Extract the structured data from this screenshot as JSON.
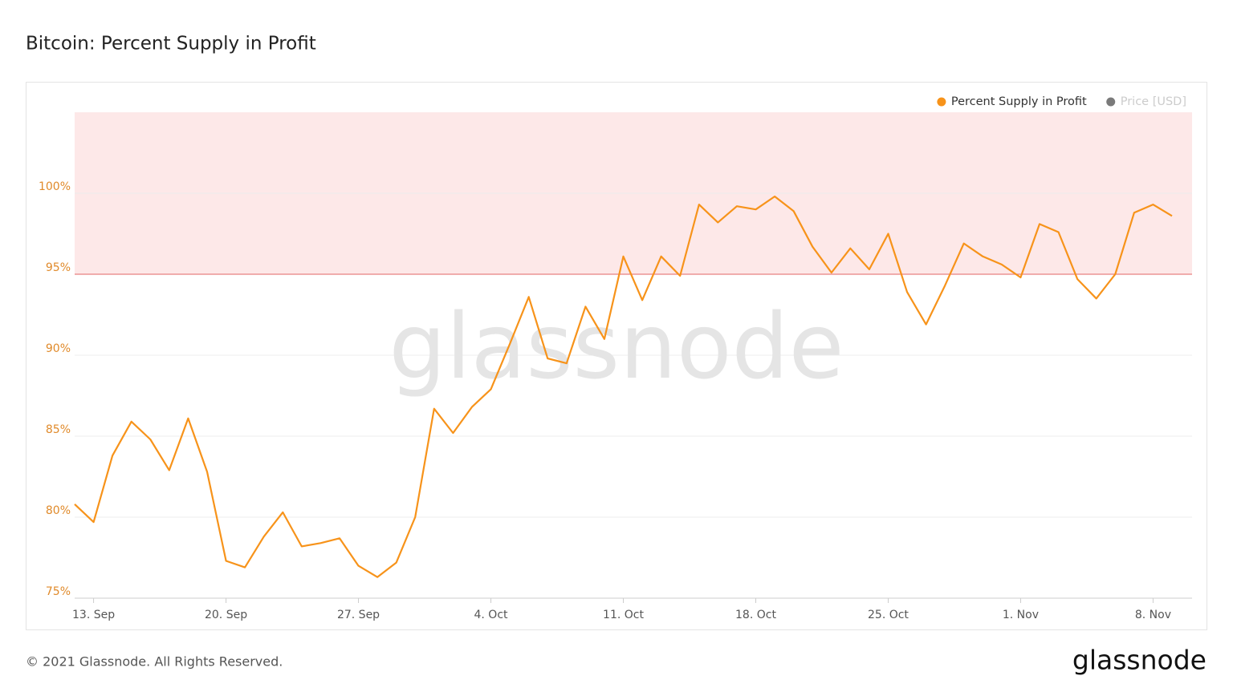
{
  "chart_data": {
    "type": "line",
    "title": "Bitcoin: Percent Supply in Profit",
    "categories": [
      null,
      "13. Sep",
      null,
      null,
      null,
      null,
      null,
      null,
      "20. Sep",
      null,
      null,
      null,
      null,
      null,
      null,
      "27. Sep",
      null,
      null,
      null,
      null,
      null,
      null,
      "4. Oct",
      null,
      null,
      null,
      null,
      null,
      null,
      "11. Oct",
      null,
      null,
      null,
      null,
      null,
      null,
      "18. Oct",
      null,
      null,
      null,
      null,
      null,
      null,
      "25. Oct",
      null,
      null,
      null,
      null,
      null,
      null,
      "1. Nov",
      null,
      null,
      null,
      null,
      null,
      null,
      "8. Nov",
      null
    ],
    "series": [
      {
        "name": "Percent Supply in Profit",
        "color": "#f7931a",
        "values": [
          80.8,
          79.7,
          83.8,
          85.9,
          84.8,
          82.9,
          86.1,
          82.8,
          77.3,
          76.9,
          78.8,
          80.3,
          78.2,
          78.4,
          78.7,
          77.0,
          76.3,
          77.2,
          80.0,
          86.7,
          85.2,
          86.8,
          87.9,
          90.7,
          93.6,
          89.8,
          89.5,
          93.0,
          91.0,
          96.1,
          93.4,
          96.1,
          94.9,
          99.3,
          98.2,
          99.2,
          99.0,
          99.8,
          98.9,
          96.7,
          95.1,
          96.6,
          95.3,
          97.5,
          93.9,
          91.9,
          94.3,
          96.9,
          96.1,
          95.6,
          94.8,
          98.1,
          97.6,
          94.7,
          93.5,
          95.0,
          98.8,
          99.3,
          98.6
        ]
      }
    ],
    "inactive_series": [
      {
        "name": "Price [USD]",
        "color": "#7a7a7a"
      }
    ],
    "ylim": [
      75,
      105
    ],
    "yticks": [
      {
        "value": 75,
        "label": "75%"
      },
      {
        "value": 80,
        "label": "80%"
      },
      {
        "value": 85,
        "label": "85%"
      },
      {
        "value": 90,
        "label": "90%"
      },
      {
        "value": 95,
        "label": "95%"
      },
      {
        "value": 100,
        "label": "100%"
      }
    ],
    "threshold": 95,
    "grid": true,
    "legend": "top-right"
  },
  "watermark": "glassnode",
  "footer": "© 2021 Glassnode. All Rights Reserved.",
  "logo": "glassnode"
}
